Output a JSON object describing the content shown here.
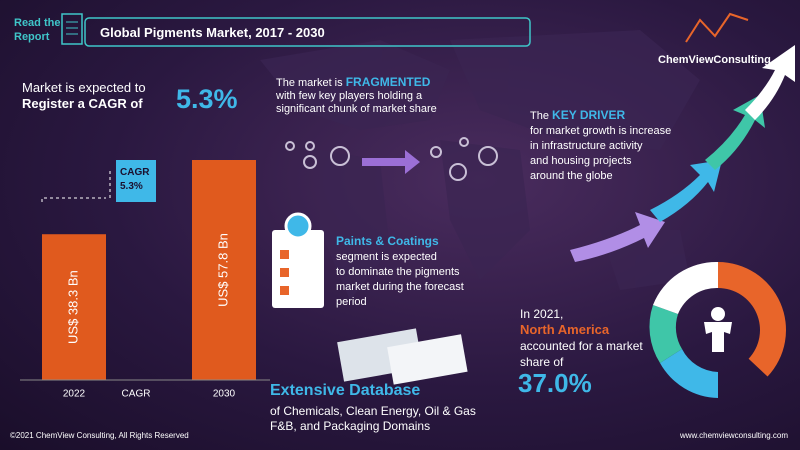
{
  "header": {
    "read_line1": "Read the",
    "read_line2": "Report",
    "title": "Global Pigments Market, 2017 - 2030",
    "brand": "ChemViewConsulting"
  },
  "cagr_intro": {
    "line1": "Market is expected to",
    "line2": "Register a CAGR of",
    "rate": "5.3%"
  },
  "chart_data": {
    "type": "bar",
    "categories": [
      "2022",
      "CAGR",
      "2030"
    ],
    "values": [
      38.3,
      null,
      57.8
    ],
    "value_labels": [
      "US$ 38.3 Bn",
      null,
      "US$ 57.8 Bn"
    ],
    "color": "#e05a1e",
    "cagr_box": [
      "CAGR",
      "5.3%"
    ]
  },
  "fragmented": [
    "The market is",
    "FRAGMENTED",
    "with few key players holding a",
    "significant chunk of market share"
  ],
  "driver": [
    "The",
    "KEY DRIVER",
    "for market growth is increase",
    "in infrastructure activity",
    "and housing projects",
    "around the globe"
  ],
  "segment": [
    "Paints & Coatings",
    "segment is expected",
    "to dominate the pigments",
    "market during the forecast",
    "period"
  ],
  "region": [
    "In 2021,",
    "North America",
    "accounted for a market",
    "share of",
    {
      "value": 37.0,
      "label": "37.0%"
    }
  ],
  "database": [
    "Extensive Database",
    "of Chemicals, Clean Energy, Oil & Gas",
    "F&B, and Packaging Domains"
  ],
  "footer": {
    "copyright": "©2021 ChemView Consulting, All Rights Reserved",
    "website": "www.chemviewconsulting.com"
  }
}
